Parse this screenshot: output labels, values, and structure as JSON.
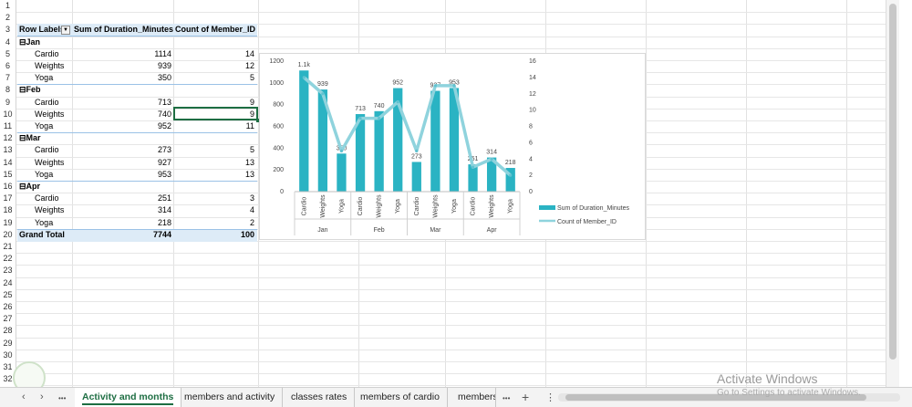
{
  "row_numbers": [
    "1",
    "2",
    "3",
    "4",
    "5",
    "6",
    "7",
    "8",
    "9",
    "10",
    "11",
    "12",
    "13",
    "14",
    "15",
    "16",
    "17",
    "18",
    "19",
    "20",
    "21",
    "22",
    "23",
    "24",
    "25",
    "26",
    "27",
    "28",
    "29",
    "30",
    "31",
    "32"
  ],
  "pivot": {
    "header": {
      "row_labels": "Row Labels",
      "sum_duration": "Sum of Duration_Minutes",
      "count_member": "Count of Member_ID"
    },
    "groups": [
      {
        "month": "Jan",
        "rows": [
          {
            "label": "Cardio",
            "sum": "1114",
            "count": "14"
          },
          {
            "label": "Weights",
            "sum": "939",
            "count": "12"
          },
          {
            "label": "Yoga",
            "sum": "350",
            "count": "5"
          }
        ]
      },
      {
        "month": "Feb",
        "rows": [
          {
            "label": "Cardio",
            "sum": "713",
            "count": "9"
          },
          {
            "label": "Weights",
            "sum": "740",
            "count": "9"
          },
          {
            "label": "Yoga",
            "sum": "952",
            "count": "11"
          }
        ]
      },
      {
        "month": "Mar",
        "rows": [
          {
            "label": "Cardio",
            "sum": "273",
            "count": "5"
          },
          {
            "label": "Weights",
            "sum": "927",
            "count": "13"
          },
          {
            "label": "Yoga",
            "sum": "953",
            "count": "13"
          }
        ]
      },
      {
        "month": "Apr",
        "rows": [
          {
            "label": "Cardio",
            "sum": "251",
            "count": "3"
          },
          {
            "label": "Weights",
            "sum": "314",
            "count": "4"
          },
          {
            "label": "Yoga",
            "sum": "218",
            "count": "2"
          }
        ]
      }
    ],
    "grand_total": {
      "label": "Grand Total",
      "sum": "7744",
      "count": "100"
    },
    "collapse_glyph": "⊟",
    "dropdown_glyph": "▼"
  },
  "chart_data": {
    "type": "bar",
    "title": "",
    "categories": [
      "Cardio",
      "Weights",
      "Yoga",
      "Cardio",
      "Weights",
      "Yoga",
      "Cardio",
      "Weights",
      "Yoga",
      "Cardio",
      "Weights",
      "Yoga"
    ],
    "groups": [
      "Jan",
      "Feb",
      "Mar",
      "Apr"
    ],
    "series": [
      {
        "name": "Sum of Duration_Minutes",
        "kind": "bar",
        "axis": "left",
        "color": "#2ab3c3",
        "values": [
          1114,
          939,
          350,
          713,
          740,
          952,
          273,
          927,
          953,
          251,
          314,
          218
        ],
        "labels": [
          "1.1k",
          "939",
          "350",
          "713",
          "740",
          "952",
          "273",
          "927",
          "953",
          "251",
          "314",
          "218"
        ]
      },
      {
        "name": "Count of Member_ID",
        "kind": "line",
        "axis": "right",
        "color": "#8fd3dd",
        "values": [
          14,
          12,
          5,
          9,
          9,
          11,
          5,
          13,
          13,
          3,
          4,
          2
        ]
      }
    ],
    "y_left": {
      "ticks": [
        "0",
        "200",
        "400",
        "600",
        "800",
        "1000",
        "1200"
      ],
      "ylim": [
        0,
        1200
      ]
    },
    "y_right": {
      "ticks": [
        "0",
        "2",
        "4",
        "6",
        "8",
        "10",
        "12",
        "14",
        "16"
      ],
      "ylim": [
        0,
        16
      ]
    },
    "legend_position": "right",
    "grid": false
  },
  "tabs": {
    "items": [
      "Activity and months",
      "members and activity",
      "classes rates",
      "members of cardio",
      "members"
    ],
    "active_index": 0,
    "nav_prev": "‹",
    "nav_next": "›",
    "more": "•••",
    "add": "+",
    "options": "⋮"
  },
  "watermark": {
    "line1": "Activate Windows",
    "line2": "Go to Settings to activate Windows."
  }
}
